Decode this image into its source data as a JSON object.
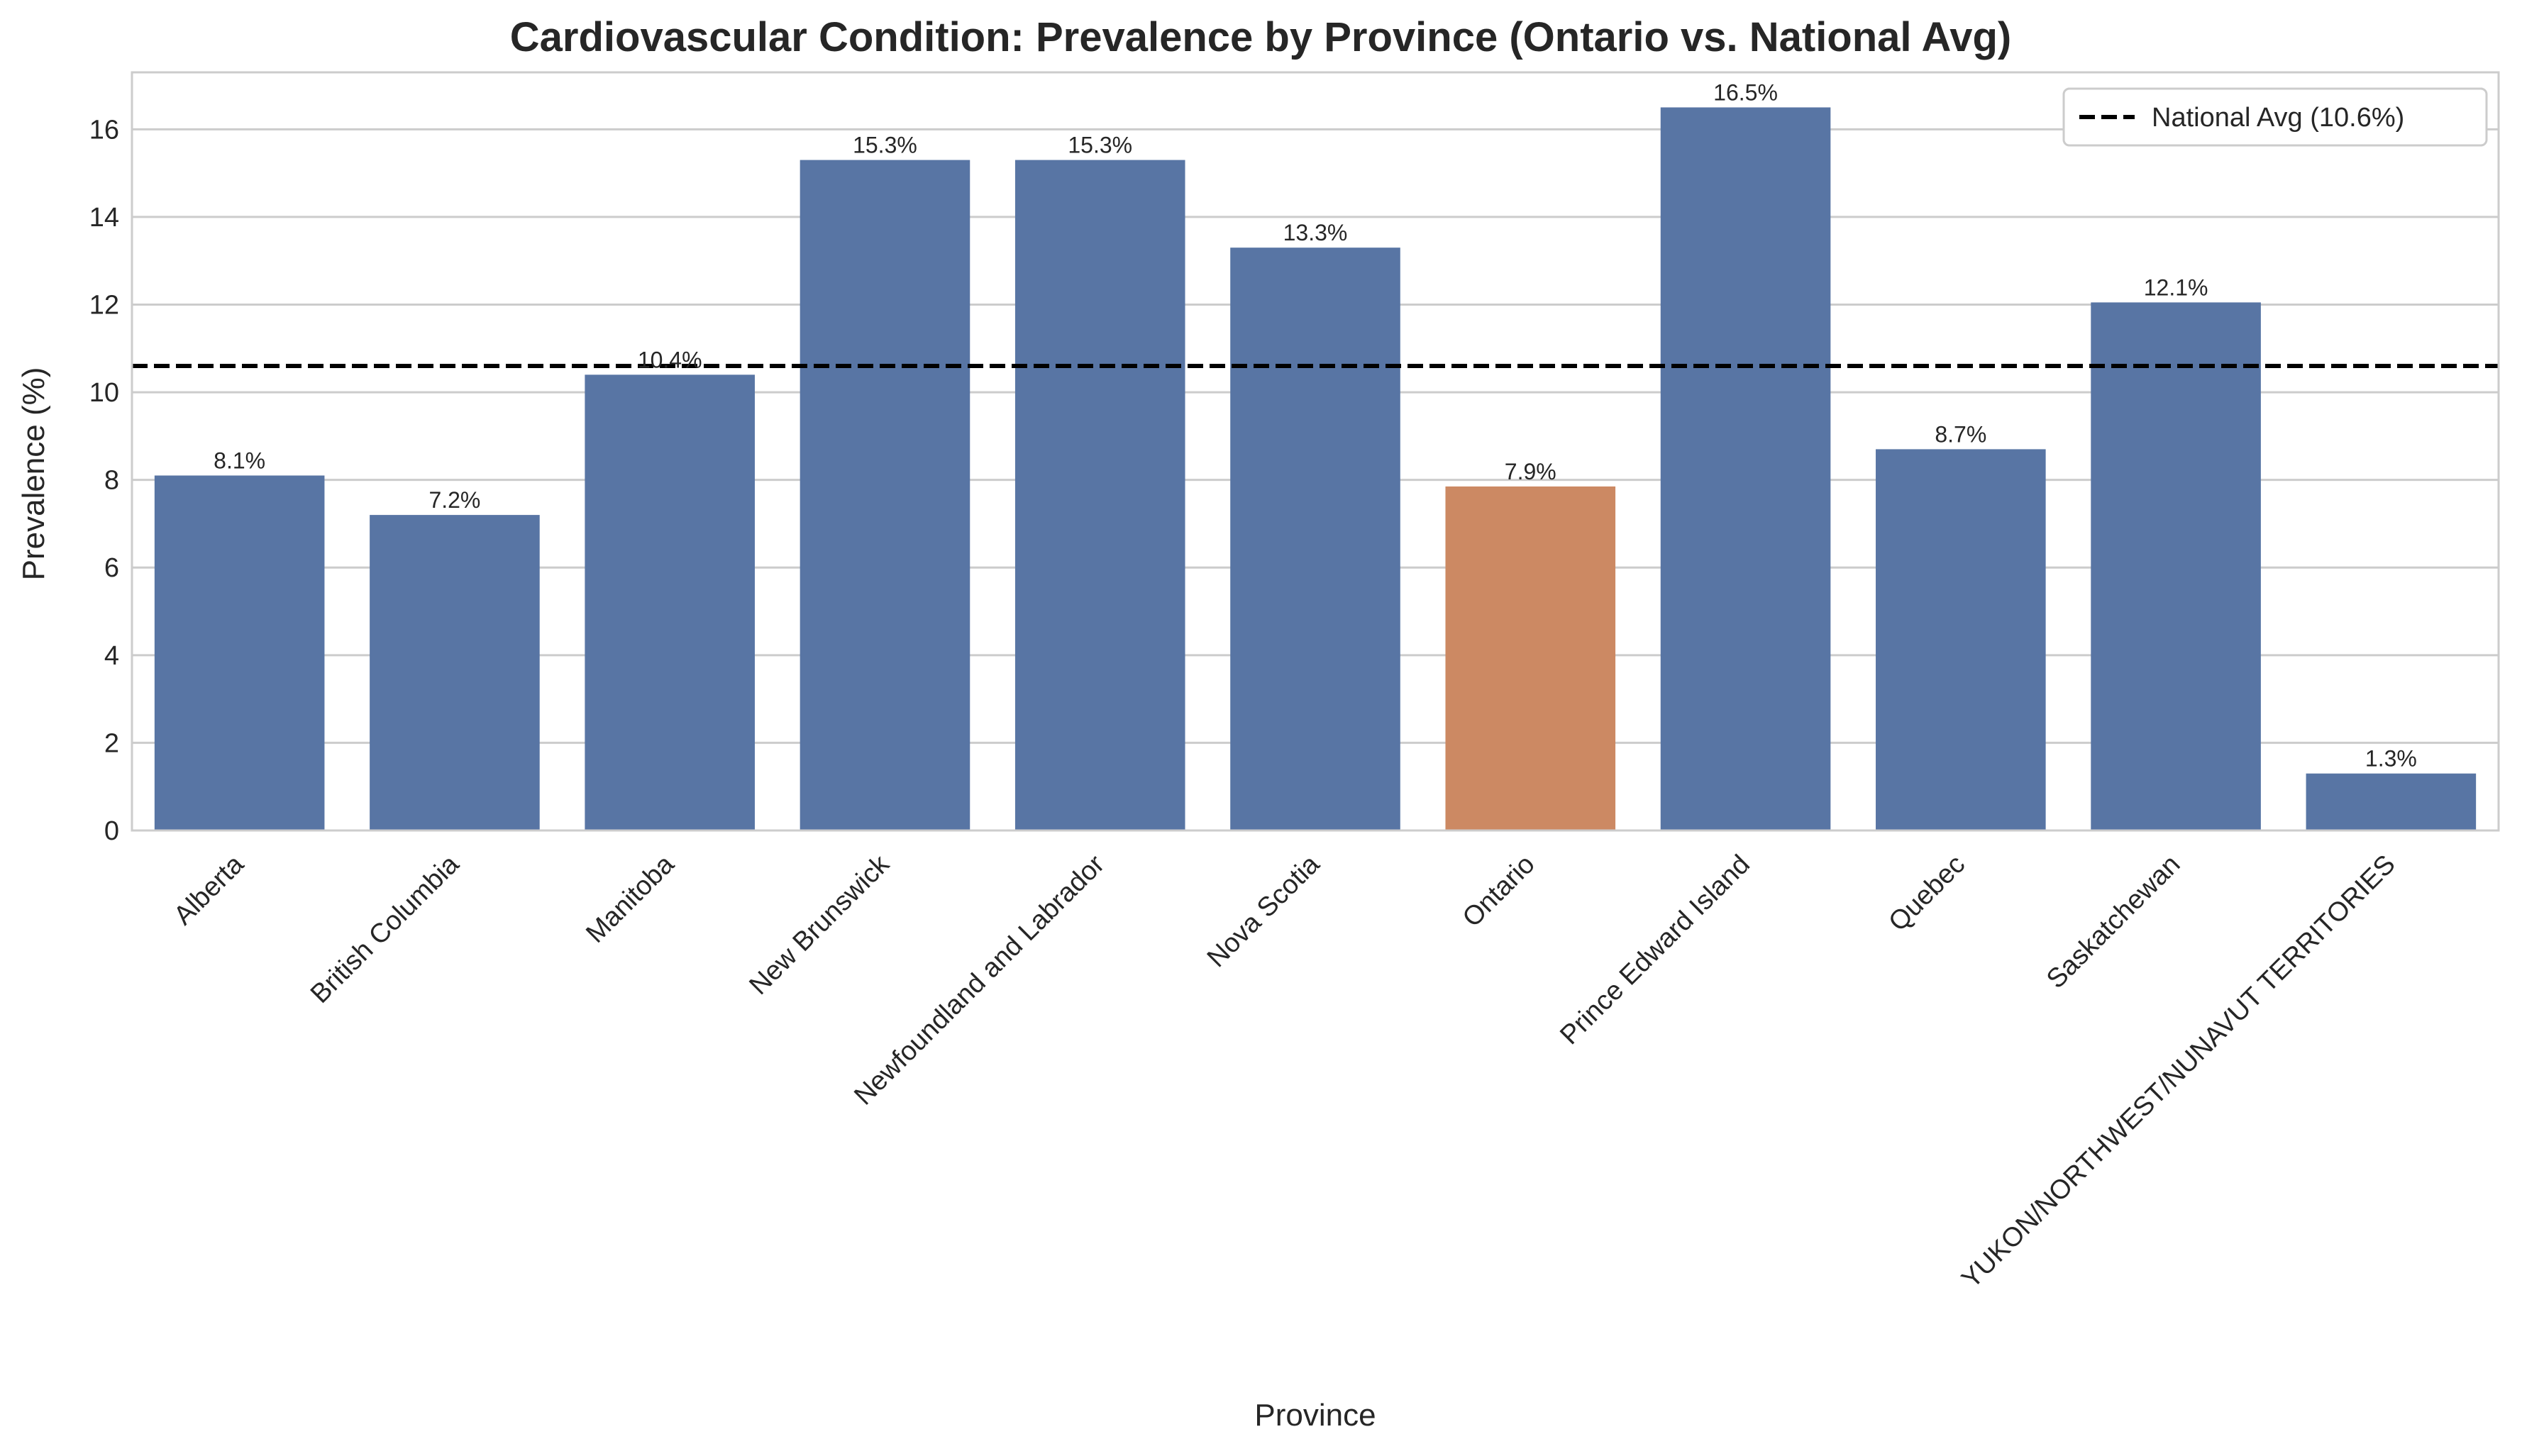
{
  "chart_data": {
    "type": "bar",
    "title": "Cardiovascular Condition: Prevalence by Province (Ontario vs. National Avg)",
    "xlabel": "Province",
    "ylabel": "Prevalence (%)",
    "ylim": [
      0,
      17.3
    ],
    "yticks": [
      "0",
      "2",
      "4",
      "6",
      "8",
      "10",
      "12",
      "14",
      "16"
    ],
    "grid": true,
    "categories": [
      "Alberta",
      "British Columbia",
      "Manitoba",
      "New Brunswick",
      "Newfoundland and Labrador",
      "Nova Scotia",
      "Ontario",
      "Prince Edward Island",
      "Quebec",
      "Saskatchewan",
      "YUKON/NORTHWEST/NUNAVUT TERRITORIES"
    ],
    "values": [
      8.1,
      7.2,
      10.4,
      15.3,
      15.3,
      13.3,
      7.85,
      16.5,
      8.7,
      12.05,
      1.3
    ],
    "value_labels": [
      "8.1%",
      "7.2%",
      "10.4%",
      "15.3%",
      "15.3%",
      "13.3%",
      "7.9%",
      "16.5%",
      "8.7%",
      "12.1%",
      "1.3%"
    ],
    "highlight": "Ontario",
    "colors": {
      "default": "#5875a4",
      "highlight": "#cc8963",
      "reference_line": "#000000"
    },
    "reference_line": {
      "value": 10.6,
      "label": "National Avg (10.6%)",
      "style": "dashed"
    },
    "legend_position": "top-right"
  }
}
